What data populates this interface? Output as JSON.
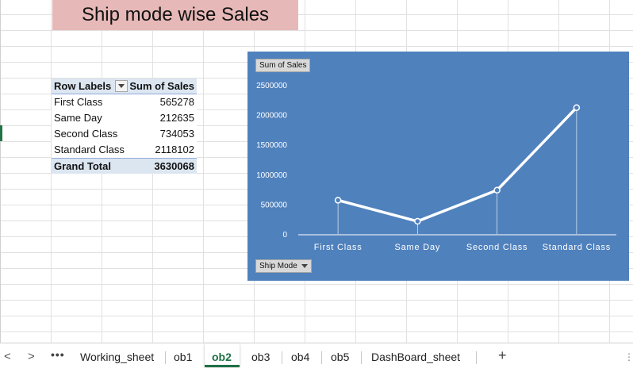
{
  "title": "Ship mode wise Sales",
  "pivot": {
    "headers": {
      "row_labels": "Row Labels",
      "sum_of_sales": "Sum of Sales"
    },
    "rows": [
      {
        "label": "First Class",
        "value": "565278"
      },
      {
        "label": "Same Day",
        "value": "212635"
      },
      {
        "label": "Second Class",
        "value": "734053"
      },
      {
        "label": "Standard Class",
        "value": "2118102"
      }
    ],
    "total": {
      "label": "Grand Total",
      "value": "3630068"
    }
  },
  "chart_buttons": {
    "values_field": "Sum of Sales",
    "axis_field": "Ship Mode"
  },
  "chart_data": {
    "type": "line",
    "categories": [
      "First Class",
      "Same Day",
      "Second Class",
      "Standard Class"
    ],
    "series": [
      {
        "values": [
          565278,
          212635,
          734053,
          2118102
        ]
      }
    ],
    "ylim": [
      0,
      2500000
    ],
    "yticks": [
      "0",
      "500000",
      "1000000",
      "1500000",
      "2000000",
      "2500000"
    ],
    "grid": false,
    "drop_lines": true,
    "background_color": "#4f81bd",
    "line_color": "#ffffff"
  },
  "tabs": {
    "nav_prev": "<",
    "nav_next": ">",
    "more": "•••",
    "items": [
      "Working_sheet",
      "ob1",
      "ob2",
      "ob3",
      "ob4",
      "ob5",
      "DashBoard_sheet"
    ],
    "active": "ob2",
    "add": "+",
    "options": "⋮"
  },
  "colors": {
    "title_fill": "#e6b8b7",
    "pivot_header_fill": "#dce6f1",
    "active_tab": "#1e7145"
  }
}
